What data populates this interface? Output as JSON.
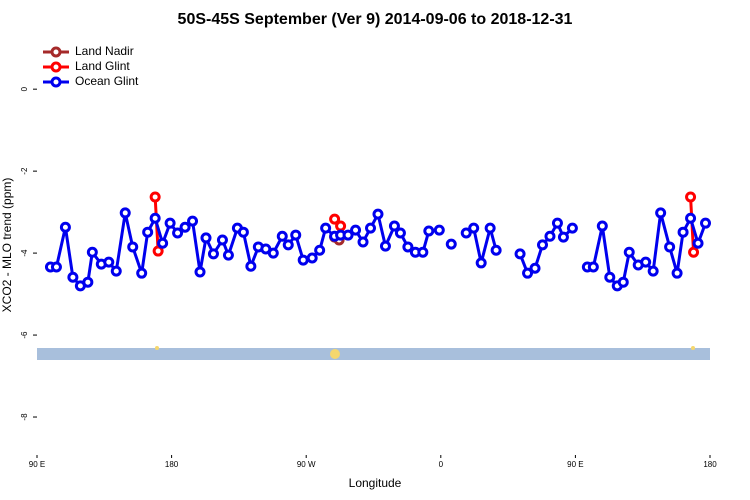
{
  "chart_data": {
    "type": "line",
    "title": "50S-45S September (Ver 9)   2014-09-06 to 2018-12-31",
    "x_label": "Longitude",
    "y_label": "XCO2 - MLO trend (ppm)",
    "xlim": [
      90,
      540
    ],
    "ylim": [
      -9,
      1.2
    ],
    "xticks": [
      {
        "value": 90,
        "label": "90 E"
      },
      180,
      {
        "value": 270,
        "label": "90 W"
      },
      {
        "value": 360,
        "label": "0"
      },
      {
        "value": 450,
        "label": "90 E"
      },
      {
        "value": 540,
        "label": "180"
      }
    ],
    "yticks": [
      -8,
      -6,
      -4,
      -2,
      0
    ],
    "legend": "top-left",
    "series": [
      {
        "name": "Land Nadir",
        "color": "#a52a2a",
        "x": [
          289,
          292
        ],
        "values": [
          -3.61,
          -3.68
        ]
      },
      {
        "name": "Land Glint",
        "color": "#ff0000",
        "x": [
          169,
          171,
          175,
          289,
          293,
          300,
          527,
          529
        ],
        "values": [
          -2.63,
          -3.95,
          null,
          -3.17,
          -3.34,
          null,
          -2.63,
          -3.98
        ]
      },
      {
        "name": "Ocean Glint",
        "color": "#0000ee",
        "x": [
          99,
          103,
          109,
          114,
          119,
          124,
          127,
          133,
          138,
          143,
          149,
          154,
          160,
          164,
          169,
          174,
          179,
          184,
          189,
          194,
          199,
          203,
          208,
          214,
          218,
          224,
          228,
          233,
          238,
          243,
          248,
          254,
          258,
          263,
          268,
          274,
          279,
          283,
          289,
          293,
          298,
          303,
          308,
          313,
          318,
          323,
          329,
          333,
          338,
          343,
          348,
          352,
          359,
          364,
          367,
          372,
          377,
          382,
          387,
          393,
          397,
          405,
          413,
          418,
          423,
          428,
          433,
          438,
          442,
          448,
          453,
          458,
          462,
          468,
          473,
          478,
          482,
          486,
          492,
          497,
          502,
          507,
          513,
          518,
          522,
          527,
          532,
          537
        ],
        "values": [
          -4.34,
          -4.34,
          -3.37,
          -4.59,
          -4.8,
          -4.71,
          -3.98,
          -4.27,
          -4.22,
          -4.44,
          -3.02,
          -3.85,
          -4.49,
          -3.49,
          -3.15,
          -3.76,
          -3.27,
          -3.51,
          -3.37,
          -3.22,
          -4.46,
          -3.63,
          -4.02,
          -3.68,
          -4.05,
          -3.39,
          -3.49,
          -4.32,
          -3.85,
          -3.9,
          -4.0,
          -3.59,
          -3.8,
          -3.56,
          -4.17,
          -4.12,
          -3.93,
          -3.39,
          -3.59,
          -3.56,
          -3.56,
          -3.44,
          -3.73,
          -3.39,
          -3.05,
          -3.83,
          -3.34,
          -3.51,
          -3.85,
          -3.98,
          -3.98,
          -3.46,
          -3.44,
          null,
          -3.78,
          null,
          -3.51,
          -3.39,
          -4.24,
          -3.39,
          -3.93,
          null,
          -4.02,
          -4.49,
          -4.37,
          -3.8,
          -3.59,
          -3.27,
          -3.61,
          -3.39,
          null,
          -4.34,
          -4.34,
          -3.34,
          -4.59,
          -4.8,
          -4.71,
          -3.98,
          -4.29,
          -4.22,
          -4.44,
          -3.02,
          -3.85,
          -4.49,
          -3.49,
          -3.15,
          -3.76,
          -3.27
        ]
      }
    ]
  }
}
